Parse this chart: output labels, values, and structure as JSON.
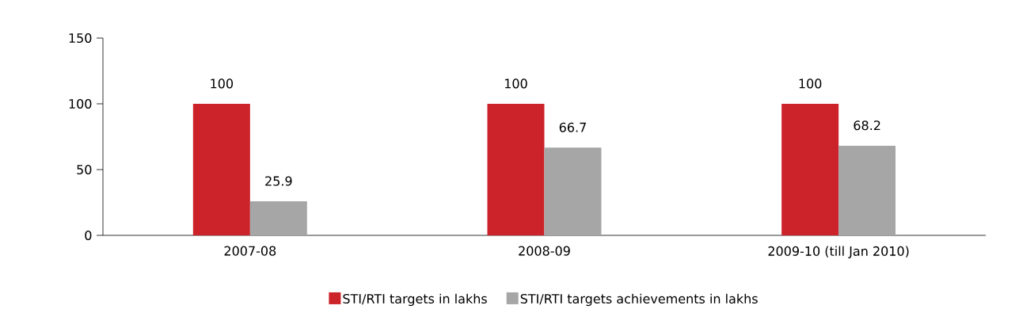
{
  "chart_data": {
    "type": "bar",
    "categories": [
      "2007-08",
      "2008-09",
      "2009-10 (till Jan 2010)"
    ],
    "series": [
      {
        "name": "STI/RTI targets in lakhs",
        "color": "#cc2229",
        "values": [
          100,
          100,
          100
        ]
      },
      {
        "name": "STI/RTI targets achievements in lakhs",
        "color": "#a6a6a7",
        "values": [
          25.9,
          66.7,
          68.2
        ]
      }
    ],
    "ylim": [
      0,
      150
    ],
    "yticks": [
      0,
      50,
      100,
      150
    ],
    "data_labels": true,
    "grid": false,
    "legend": "bottom"
  }
}
